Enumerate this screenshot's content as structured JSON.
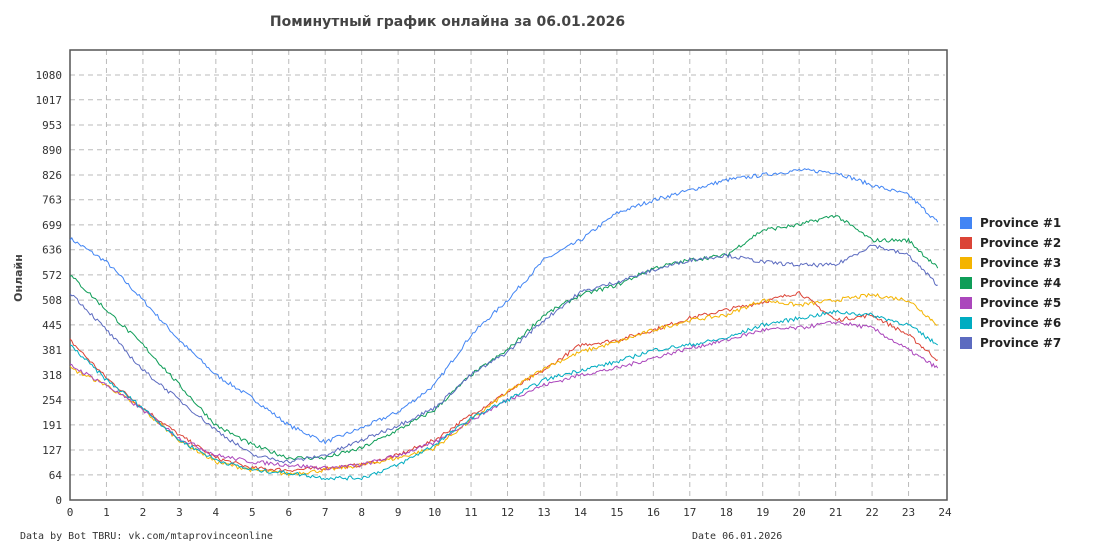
{
  "chart_data": {
    "type": "line",
    "title": "Поминутный график онлайна за 06.01.2026",
    "xlabel": "",
    "ylabel": "Онлайн",
    "xlim": [
      0,
      24
    ],
    "ylim": [
      0,
      1080
    ],
    "xticks": [
      0,
      1,
      2,
      3,
      4,
      5,
      6,
      7,
      8,
      9,
      10,
      11,
      12,
      13,
      14,
      15,
      16,
      17,
      18,
      19,
      20,
      21,
      22,
      23,
      24
    ],
    "yticks": [
      0,
      64,
      127,
      191,
      254,
      318,
      381,
      445,
      508,
      572,
      636,
      699,
      763,
      826,
      890,
      953,
      1017,
      1080
    ],
    "grid": true,
    "legend": "right",
    "x": [
      0,
      1,
      2,
      3,
      4,
      5,
      6,
      7,
      8,
      9,
      10,
      11,
      12,
      13,
      14,
      15,
      16,
      17,
      18,
      19,
      20,
      21,
      22,
      23,
      23.8
    ],
    "series": [
      {
        "name": "Province #1",
        "color": "#4285f4",
        "values": [
          665,
          605,
          508,
          406,
          318,
          259,
          190,
          147,
          183,
          224,
          292,
          419,
          508,
          610,
          660,
          729,
          762,
          787,
          813,
          826,
          838,
          833,
          800,
          775,
          706
        ]
      },
      {
        "name": "Province #2",
        "color": "#db4437",
        "values": [
          406,
          310,
          234,
          165,
          107,
          81,
          76,
          81,
          89,
          114,
          152,
          216,
          274,
          330,
          394,
          406,
          432,
          462,
          483,
          503,
          528,
          457,
          470,
          419,
          356
        ]
      },
      {
        "name": "Province #3",
        "color": "#f4b400",
        "values": [
          335,
          292,
          229,
          152,
          97,
          76,
          66,
          76,
          89,
          107,
          132,
          203,
          274,
          335,
          376,
          401,
          432,
          457,
          470,
          508,
          495,
          508,
          521,
          508,
          445
        ]
      },
      {
        "name": "Province #4",
        "color": "#0f9d58",
        "values": [
          572,
          483,
          394,
          292,
          190,
          140,
          107,
          107,
          132,
          178,
          229,
          318,
          381,
          470,
          521,
          546,
          589,
          610,
          622,
          686,
          699,
          724,
          660,
          660,
          589
        ]
      },
      {
        "name": "Province #5",
        "color": "#ab47bc",
        "values": [
          343,
          292,
          229,
          157,
          114,
          97,
          89,
          81,
          89,
          114,
          145,
          203,
          254,
          292,
          318,
          335,
          361,
          386,
          406,
          432,
          437,
          452,
          437,
          381,
          335
        ]
      },
      {
        "name": "Province #6",
        "color": "#00acc1",
        "values": [
          394,
          305,
          234,
          152,
          102,
          76,
          69,
          56,
          56,
          89,
          140,
          208,
          254,
          305,
          330,
          351,
          381,
          394,
          411,
          445,
          462,
          478,
          470,
          445,
          394
        ]
      },
      {
        "name": "Province #7",
        "color": "#5c6bc0",
        "values": [
          528,
          432,
          330,
          254,
          178,
          114,
          97,
          114,
          152,
          190,
          234,
          318,
          376,
          457,
          528,
          554,
          584,
          610,
          622,
          605,
          597,
          597,
          648,
          622,
          546
        ]
      }
    ]
  },
  "footer": {
    "source": "Data by Bot TBRU: vk.com/mtaprovinceonline",
    "date": "Date 06.01.2026"
  }
}
